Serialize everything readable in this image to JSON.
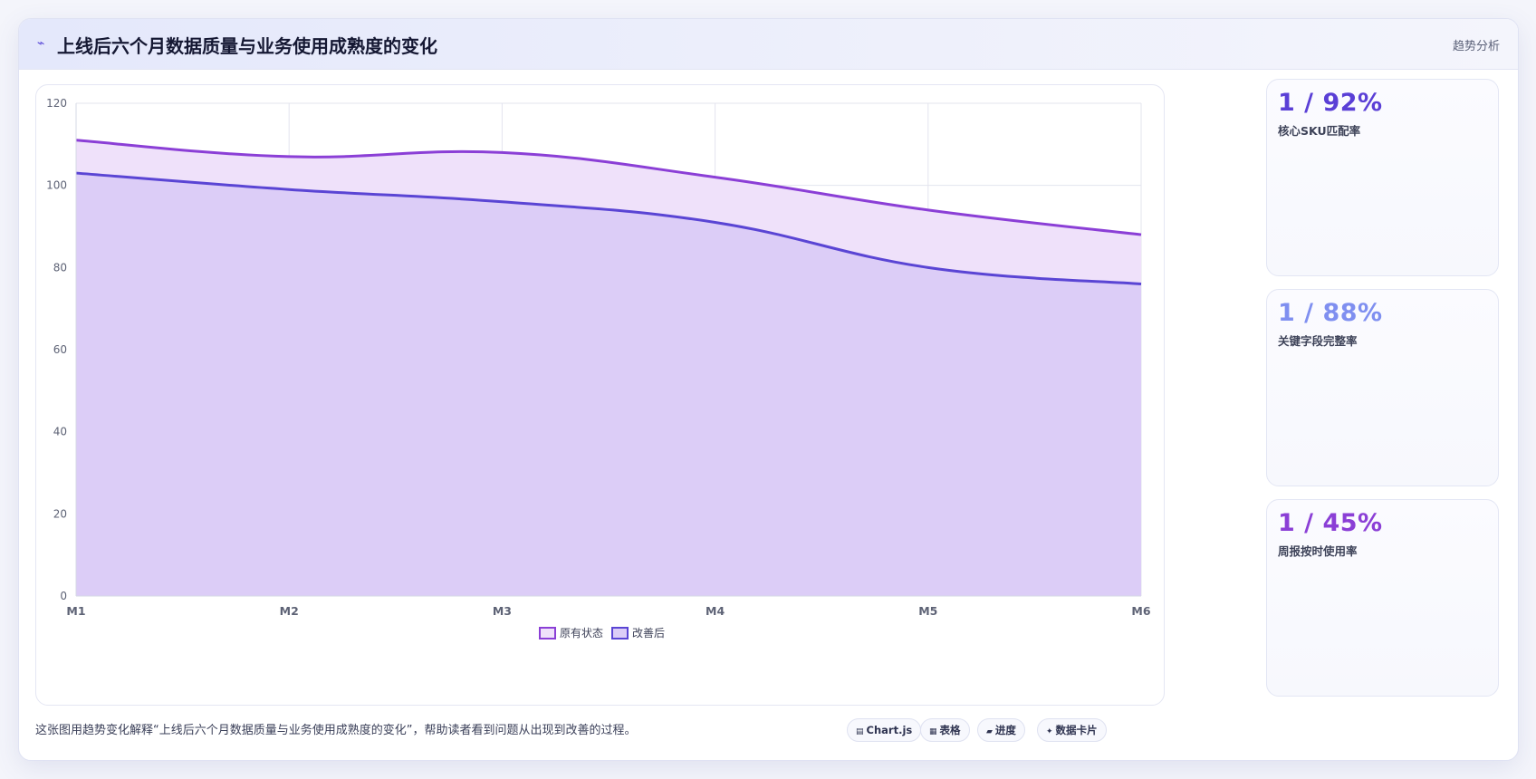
{
  "header": {
    "title_icon": "trend-line-icon",
    "title": "上线后六个月数据质量与业务使用成熟度的变化",
    "tag": "趋势分析"
  },
  "chart_data": {
    "type": "area",
    "categories": [
      "M1",
      "M2",
      "M3",
      "M4",
      "M5",
      "M6"
    ],
    "series": [
      {
        "name": "原有状态",
        "values": [
          111,
          107,
          108,
          102,
          94,
          88
        ],
        "color": "#8b3fd6",
        "fill": "#efe1fa"
      },
      {
        "name": "改善后",
        "values": [
          103,
          99,
          96,
          91,
          80,
          76
        ],
        "color": "#5a45d4",
        "fill": "#dccdf7"
      }
    ],
    "ylim": [
      0,
      120
    ],
    "yticks": [
      0,
      20,
      40,
      60,
      80,
      100,
      120
    ],
    "grid": true,
    "legend_position": "bottom-center"
  },
  "kpis": [
    {
      "value": "1 / 92%",
      "label": "核心SKU匹配率",
      "color": "#5a3fd6"
    },
    {
      "value": "1 / 88%",
      "label": "关键字段完整率",
      "color": "#7f8ff0"
    },
    {
      "value": "1 / 45%",
      "label": "周报按时使用率",
      "color": "#8b3fd6"
    }
  ],
  "footer": {
    "caption": "这张图用趋势变化解释“上线后六个月数据质量与业务使用成熟度的变化”，帮助读者看到问题从出现到改善的过程。",
    "pills": [
      {
        "icon": "chart-icon",
        "glyph": "▤",
        "label": "Chart.js"
      },
      {
        "icon": "table-icon",
        "glyph": "▦",
        "label": "表格"
      },
      {
        "icon": "progress-icon",
        "glyph": "▰",
        "label": "进度"
      },
      {
        "icon": "sparkle-icon",
        "glyph": "✦",
        "label": "数据卡片"
      }
    ]
  }
}
